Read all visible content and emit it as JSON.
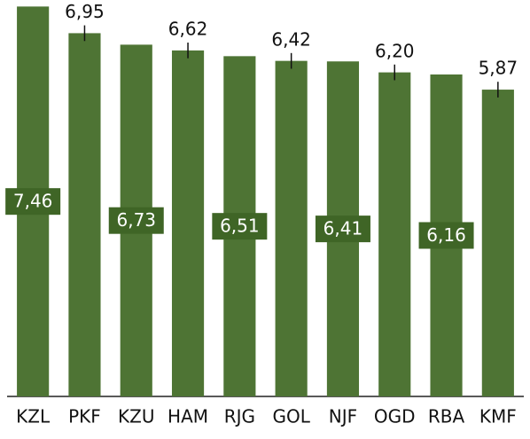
{
  "chart_data": {
    "type": "bar",
    "categories": [
      "KZL",
      "PKF",
      "KZU",
      "HAM",
      "RJG",
      "GOL",
      "NJF",
      "OGD",
      "RBA",
      "KMF"
    ],
    "values": [
      7.46,
      6.95,
      6.73,
      6.62,
      6.51,
      6.42,
      6.41,
      6.2,
      6.16,
      5.87
    ],
    "value_labels": [
      "7,46",
      "6,95",
      "6,73",
      "6,62",
      "6,51",
      "6,42",
      "6,41",
      "6,20",
      "6,16",
      "5,87"
    ],
    "errors": [
      null,
      0.15,
      null,
      0.15,
      null,
      0.15,
      null,
      0.15,
      null,
      0.15
    ],
    "color": "#4e7434",
    "ylim": [
      0,
      7.5
    ]
  }
}
